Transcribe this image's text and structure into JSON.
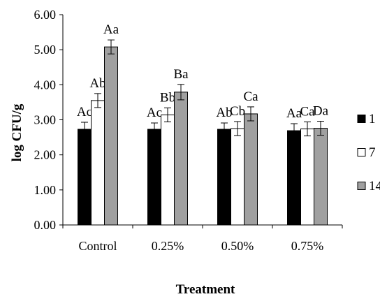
{
  "chart_data": {
    "type": "bar",
    "title": "",
    "xlabel": "Treatment",
    "ylabel": "log CFU/g",
    "ylim": [
      0,
      6
    ],
    "yticks": [
      "0.00",
      "1.00",
      "2.00",
      "3.00",
      "4.00",
      "5.00",
      "6.00"
    ],
    "categories": [
      "Control",
      "0.25%",
      "0.50%",
      "0.75%"
    ],
    "legend_position": "right",
    "grid": false,
    "series": [
      {
        "name": "1",
        "color": "#000000",
        "values": [
          2.73,
          2.73,
          2.73,
          2.69
        ],
        "errors": [
          0.2,
          0.18,
          0.18,
          0.2
        ],
        "labels": [
          "Ac",
          "Ac",
          "Ab",
          "Aa"
        ]
      },
      {
        "name": "7",
        "color": "#ffffff",
        "values": [
          3.55,
          3.14,
          2.75,
          2.74
        ],
        "errors": [
          0.2,
          0.2,
          0.2,
          0.2
        ],
        "labels": [
          "Ab",
          "Bb",
          "Cb",
          "Ca"
        ]
      },
      {
        "name": "14",
        "color": "#a0a0a0",
        "values": [
          5.08,
          3.79,
          3.17,
          2.76
        ],
        "errors": [
          0.2,
          0.22,
          0.2,
          0.2
        ],
        "labels": [
          "Aa",
          "Ba",
          "Ca",
          "Da"
        ]
      }
    ]
  }
}
